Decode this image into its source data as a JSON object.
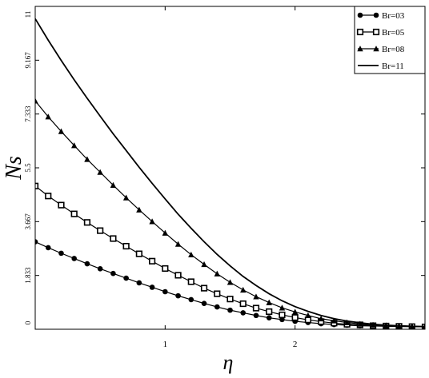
{
  "chart_data": {
    "type": "line",
    "xlabel": "η",
    "ylabel": "Ns",
    "xlim": [
      0,
      3
    ],
    "xticks": [
      1,
      2
    ],
    "ylim": [
      0,
      11
    ],
    "yticks": [
      0,
      1.833,
      3.667,
      5.5,
      7.333,
      9.167,
      11
    ],
    "legend": "upper right",
    "x": [
      0,
      0.1,
      0.2,
      0.3,
      0.4,
      0.5,
      0.6,
      0.7,
      0.8,
      0.9,
      1.0,
      1.1,
      1.2,
      1.3,
      1.4,
      1.5,
      1.6,
      1.7,
      1.8,
      1.9,
      2.0,
      2.1,
      2.2,
      2.3,
      2.4,
      2.5,
      2.6,
      2.7,
      2.8,
      2.9,
      3.0
    ],
    "series": [
      {
        "name": "Br=03",
        "color": "#000000",
        "marker": "circle",
        "values": [
          2.98,
          2.78,
          2.59,
          2.41,
          2.23,
          2.06,
          1.9,
          1.74,
          1.58,
          1.43,
          1.28,
          1.14,
          1.01,
          0.88,
          0.76,
          0.65,
          0.56,
          0.47,
          0.39,
          0.33,
          0.27,
          0.23,
          0.19,
          0.16,
          0.14,
          0.12,
          0.11,
          0.1,
          0.09,
          0.09,
          0.08
        ]
      },
      {
        "name": "Br=05",
        "color": "#000000",
        "marker": "square",
        "values": [
          4.88,
          4.54,
          4.23,
          3.93,
          3.64,
          3.36,
          3.09,
          2.83,
          2.57,
          2.32,
          2.07,
          1.84,
          1.62,
          1.4,
          1.21,
          1.03,
          0.87,
          0.72,
          0.6,
          0.49,
          0.4,
          0.32,
          0.26,
          0.21,
          0.17,
          0.15,
          0.12,
          0.11,
          0.1,
          0.09,
          0.08
        ]
      },
      {
        "name": "Br=08",
        "color": "#000000",
        "marker": "triangle",
        "values": [
          7.78,
          7.24,
          6.74,
          6.26,
          5.79,
          5.35,
          4.91,
          4.48,
          4.07,
          3.67,
          3.28,
          2.9,
          2.54,
          2.21,
          1.89,
          1.6,
          1.34,
          1.11,
          0.91,
          0.73,
          0.59,
          0.47,
          0.36,
          0.29,
          0.23,
          0.18,
          0.15,
          0.13,
          0.11,
          0.1,
          0.09
        ]
      },
      {
        "name": "Br=11",
        "color": "#000000",
        "values": [
          10.58,
          9.85,
          9.16,
          8.5,
          7.87,
          7.26,
          6.66,
          6.09,
          5.52,
          4.97,
          4.44,
          3.92,
          3.44,
          2.98,
          2.55,
          2.16,
          1.8,
          1.49,
          1.21,
          0.97,
          0.77,
          0.61,
          0.47,
          0.36,
          0.28,
          0.22,
          0.17,
          0.14,
          0.12,
          0.1,
          0.09
        ]
      }
    ]
  }
}
